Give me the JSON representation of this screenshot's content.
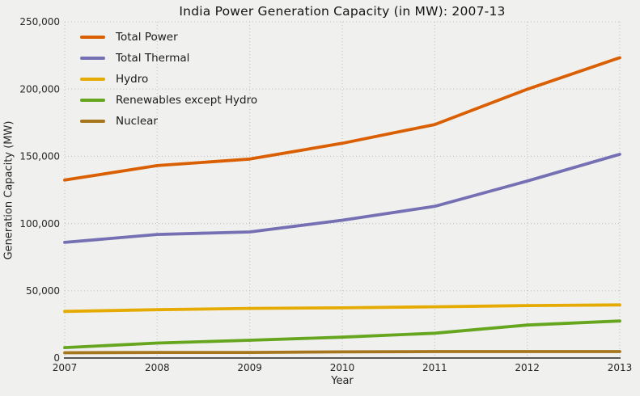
{
  "chart_data": {
    "type": "line",
    "title": "India Power Generation Capacity (in MW): 2007-13",
    "xlabel": "Year",
    "ylabel": "Generation Capacity (MW)",
    "x": [
      2007,
      2008,
      2009,
      2010,
      2011,
      2012,
      2013
    ],
    "xlim": [
      2007,
      2013
    ],
    "ylim": [
      0,
      250000
    ],
    "yticks": [
      0,
      50000,
      100000,
      150000,
      200000,
      250000
    ],
    "ytick_labels": [
      "0",
      "50,000",
      "100,000",
      "150,000",
      "200,000",
      "250,000"
    ],
    "xtick_labels": [
      "2007",
      "2008",
      "2009",
      "2010",
      "2011",
      "2012",
      "2013"
    ],
    "grid": "dotted both axes",
    "legend_position": "top-left",
    "background_color": "#f0f0ee",
    "series": [
      {
        "name": "Total Power",
        "color": "#d95f02",
        "values": [
          132329,
          143061,
          147965,
          159648,
          173626,
          199877,
          223344
        ]
      },
      {
        "name": "Total Thermal",
        "color": "#7570b3",
        "values": [
          86015,
          91907,
          93725,
          102454,
          112824,
          131603,
          151530
        ]
      },
      {
        "name": "Hydro",
        "color": "#e6ab02",
        "values": [
          34654,
          35909,
          36878,
          37328,
          38106,
          38990,
          39491
        ]
      },
      {
        "name": "Renewables except Hydro",
        "color": "#66a61e",
        "values": [
          7761,
          11125,
          13242,
          15521,
          18455,
          24503,
          27542
        ]
      },
      {
        "name": "Nuclear",
        "color": "#a6761d",
        "values": [
          3900,
          4120,
          4120,
          4560,
          4780,
          4780,
          4780
        ]
      }
    ]
  }
}
